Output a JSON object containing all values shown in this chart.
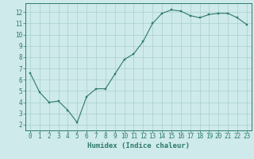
{
  "x": [
    0,
    1,
    2,
    3,
    4,
    5,
    6,
    7,
    8,
    9,
    10,
    11,
    12,
    13,
    14,
    15,
    16,
    17,
    18,
    19,
    20,
    21,
    22,
    23
  ],
  "y": [
    6.6,
    4.9,
    4.0,
    4.1,
    3.3,
    2.2,
    4.5,
    5.2,
    5.2,
    6.5,
    7.8,
    8.3,
    9.4,
    11.0,
    11.9,
    12.2,
    12.1,
    11.7,
    11.5,
    11.8,
    11.9,
    11.9,
    11.5,
    10.9
  ],
  "xlabel": "Humidex (Indice chaleur)",
  "xlim": [
    -0.5,
    23.5
  ],
  "ylim": [
    1.5,
    12.8
  ],
  "yticks": [
    2,
    3,
    4,
    5,
    6,
    7,
    8,
    9,
    10,
    11,
    12
  ],
  "xticks": [
    0,
    1,
    2,
    3,
    4,
    5,
    6,
    7,
    8,
    9,
    10,
    11,
    12,
    13,
    14,
    15,
    16,
    17,
    18,
    19,
    20,
    21,
    22,
    23
  ],
  "line_color": "#2d7a6e",
  "marker_color": "#2d7a6e",
  "bg_color": "#ceeaea",
  "grid_color": "#aacfcf",
  "axis_color": "#2d7a6e",
  "tick_color": "#2d7a6e",
  "label_color": "#2d7a6e",
  "xlabel_fontsize": 6.5,
  "tick_fontsize": 5.5
}
